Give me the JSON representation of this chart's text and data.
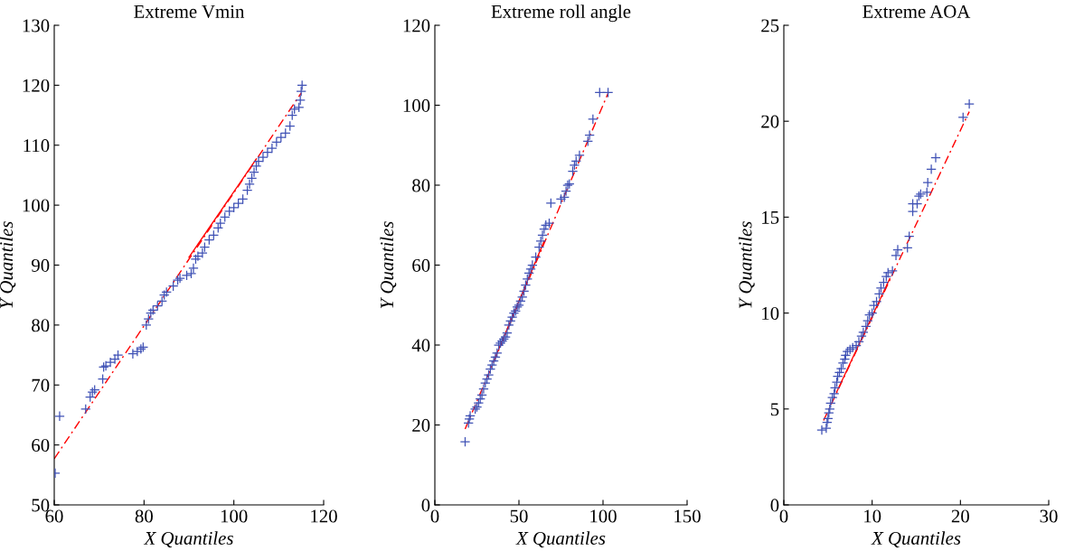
{
  "chart_data": [
    {
      "type": "scatter",
      "title": "Extreme Vmin",
      "xlabel": "X Quantiles",
      "ylabel": "Y Quantiles",
      "xlim": [
        60,
        120
      ],
      "ylim": [
        50,
        130
      ],
      "xticks": [
        60,
        80,
        100,
        120
      ],
      "yticks": [
        50,
        60,
        70,
        80,
        90,
        100,
        110,
        120,
        130
      ],
      "grid": false,
      "series": [
        {
          "type": "line",
          "color": "#ff0000",
          "line_style": "dashed",
          "marker": "none",
          "x": [
            60,
            115
          ],
          "values": [
            57.7,
            118.7
          ]
        },
        {
          "type": "line",
          "color": "#ff0000",
          "line_style": "solid",
          "marker": "none",
          "x": [
            90,
            105
          ],
          "values": [
            91.3,
            107.7
          ]
        },
        {
          "color": "#3f51b5",
          "marker": "cross",
          "x": [
            60.2,
            61.2,
            67,
            68,
            68.5,
            69,
            70.8,
            71,
            71.5,
            72.5,
            73.5,
            74.2,
            77.5,
            78.5,
            79.3,
            79.8,
            80.5,
            81,
            81.5,
            82,
            83,
            84,
            84.5,
            85,
            86.5,
            87.5,
            88,
            89.5,
            90.5,
            91,
            91.5,
            92,
            93,
            93.5,
            94.5,
            95.5,
            96.5,
            97,
            98,
            99,
            100,
            101,
            102,
            103,
            103.5,
            104,
            104.5,
            105,
            105.5,
            106.5,
            107.5,
            108.5,
            109.5,
            110.5,
            111.5,
            112.5,
            113,
            113.5,
            114.5,
            114.8,
            115,
            115.2
          ],
          "values": [
            55.3,
            64.8,
            66,
            68,
            68.8,
            69.2,
            71,
            73,
            73.2,
            73.8,
            74.3,
            75,
            75.2,
            75.6,
            76,
            76.3,
            80,
            81,
            82,
            82.5,
            83.2,
            84,
            85,
            85.5,
            86.5,
            87.5,
            87.8,
            88.3,
            88.6,
            89.5,
            91,
            91.5,
            92,
            93,
            94.2,
            95,
            96.2,
            97,
            98,
            99,
            99.6,
            100.3,
            101,
            102.5,
            103.5,
            104.5,
            105.5,
            106.5,
            107.3,
            108,
            108.8,
            109.5,
            110.5,
            111.3,
            112,
            113.2,
            115,
            116,
            116.3,
            117.5,
            119,
            120
          ]
        }
      ]
    },
    {
      "type": "scatter",
      "title": "Extreme roll angle",
      "xlabel": "X Quantiles",
      "ylabel": "Y Quantiles",
      "xlim": [
        0,
        150
      ],
      "ylim": [
        0,
        120
      ],
      "xticks": [
        0,
        50,
        100,
        150
      ],
      "yticks": [
        0,
        20,
        40,
        60,
        80,
        100,
        120
      ],
      "grid": false,
      "series": [
        {
          "type": "line",
          "color": "#ff0000",
          "line_style": "dashed",
          "marker": "none",
          "x": [
            18,
            103
          ],
          "values": [
            19,
            103
          ]
        },
        {
          "type": "line",
          "color": "#ff0000",
          "line_style": "solid",
          "marker": "none",
          "x": [
            35,
            65
          ],
          "values": [
            36,
            66
          ]
        },
        {
          "color": "#3f51b5",
          "marker": "cross",
          "x": [
            18,
            20,
            20.5,
            21,
            24,
            25,
            26,
            27,
            28,
            29,
            30,
            31,
            32,
            33,
            34,
            35,
            36,
            37,
            38,
            39,
            40,
            41,
            42,
            43,
            44,
            45,
            46,
            47,
            48,
            49,
            50,
            51,
            52,
            53,
            54,
            55,
            56,
            57,
            58,
            60,
            62,
            63,
            64,
            65,
            66,
            68,
            69,
            75,
            77,
            78,
            79,
            80,
            82,
            83,
            84,
            86,
            91,
            92,
            94,
            98,
            103
          ],
          "values": [
            15.8,
            20.5,
            21.5,
            22.3,
            24,
            24.5,
            25.5,
            26.5,
            27.5,
            29,
            30.5,
            31.5,
            32.5,
            34,
            35,
            36,
            37,
            38,
            40,
            40.5,
            41,
            41.5,
            42,
            43,
            45,
            46,
            47,
            48,
            48.5,
            49.5,
            50,
            51,
            52,
            53.5,
            55,
            56.5,
            58,
            59,
            60,
            62,
            64.5,
            66,
            67.5,
            69,
            70,
            70.5,
            75.5,
            76.5,
            77,
            78.5,
            80,
            80.3,
            83.5,
            85,
            86,
            87.5,
            91,
            92.5,
            96.5,
            103.2,
            103.2
          ]
        }
      ]
    },
    {
      "type": "scatter",
      "title": "Extreme AOA",
      "xlabel": "X Quantiles",
      "ylabel": "Y Quantiles",
      "xlim": [
        0,
        30
      ],
      "ylim": [
        0,
        25
      ],
      "xticks": [
        0,
        10,
        20,
        30
      ],
      "yticks": [
        0,
        5,
        10,
        15,
        20,
        25
      ],
      "grid": false,
      "series": [
        {
          "type": "line",
          "color": "#ff0000",
          "line_style": "dashed",
          "marker": "none",
          "x": [
            4.5,
            21
          ],
          "values": [
            4.4,
            20.5
          ]
        },
        {
          "type": "line",
          "color": "#ff0000",
          "line_style": "solid",
          "marker": "none",
          "x": [
            6,
            12
          ],
          "values": [
            5.9,
            11.8
          ]
        },
        {
          "color": "#3f51b5",
          "marker": "cross",
          "x": [
            4.3,
            4.8,
            4.9,
            5,
            5.1,
            5.2,
            5.3,
            5.5,
            5.7,
            5.8,
            6.0,
            6.1,
            6.3,
            6.5,
            6.7,
            6.9,
            7.0,
            7.2,
            7.5,
            7.8,
            8.2,
            8.5,
            8.8,
            9.0,
            9.3,
            9.5,
            9.7,
            10,
            10.2,
            10.5,
            10.8,
            11,
            11.3,
            11.6,
            11.8,
            12.3,
            12.7,
            12.9,
            14,
            14.2,
            14.6,
            14.6,
            15.1,
            15.3,
            15.5,
            16.2,
            16.3,
            16.7,
            17.2,
            20.3,
            21
          ],
          "values": [
            3.9,
            4.0,
            4.3,
            4.5,
            4.8,
            5.0,
            5.3,
            5.6,
            5.8,
            6.1,
            6.4,
            6.7,
            6.9,
            7.1,
            7.4,
            7.6,
            7.8,
            8.0,
            8.1,
            8.2,
            8.3,
            8.5,
            8.8,
            9.0,
            9.3,
            9.6,
            9.9,
            10.0,
            10.4,
            10.6,
            11.0,
            11.3,
            11.6,
            11.9,
            12.1,
            12.2,
            13.0,
            13.3,
            13.4,
            14.0,
            15.3,
            15.7,
            15.7,
            16.1,
            16.2,
            16.3,
            16.8,
            17.5,
            18.1,
            20.2,
            20.9
          ]
        }
      ]
    }
  ]
}
